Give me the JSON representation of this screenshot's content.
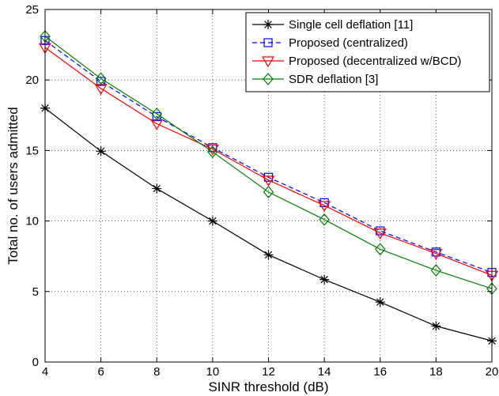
{
  "chart_data": {
    "type": "line",
    "xlabel": "SINR threshold (dB)",
    "ylabel": "Total no. of users admitted",
    "xlim": [
      4,
      20
    ],
    "ylim": [
      0,
      25
    ],
    "xticks": [
      4,
      6,
      8,
      10,
      12,
      14,
      16,
      18,
      20
    ],
    "yticks": [
      0,
      5,
      10,
      15,
      20,
      25
    ],
    "grid": true,
    "legend_position": "top-right",
    "x": [
      4,
      6,
      8,
      10,
      12,
      14,
      16,
      18,
      20
    ],
    "series": [
      {
        "name": "Single cell deflation [11]",
        "color": "#000000",
        "line_style": "solid",
        "marker": "asterisk",
        "values": [
          18.0,
          14.95,
          12.3,
          10.0,
          7.6,
          5.85,
          4.25,
          2.55,
          1.5
        ]
      },
      {
        "name": "Proposed (centralized)",
        "color": "#0000ff",
        "line_style": "dashed",
        "marker": "square",
        "values": [
          22.8,
          19.9,
          17.4,
          15.2,
          13.1,
          11.3,
          9.3,
          7.8,
          6.35
        ]
      },
      {
        "name": "Proposed (decentralized w/BCD)",
        "color": "#ff0000",
        "line_style": "solid",
        "marker": "triangle-down",
        "values": [
          22.3,
          19.4,
          16.9,
          15.1,
          12.9,
          11.1,
          9.15,
          7.7,
          6.15
        ]
      },
      {
        "name": "SDR deflation [3]",
        "color": "#008000",
        "line_style": "solid",
        "marker": "diamond",
        "values": [
          23.1,
          20.1,
          17.6,
          14.9,
          12.05,
          10.1,
          8.0,
          6.5,
          5.2
        ]
      }
    ]
  }
}
